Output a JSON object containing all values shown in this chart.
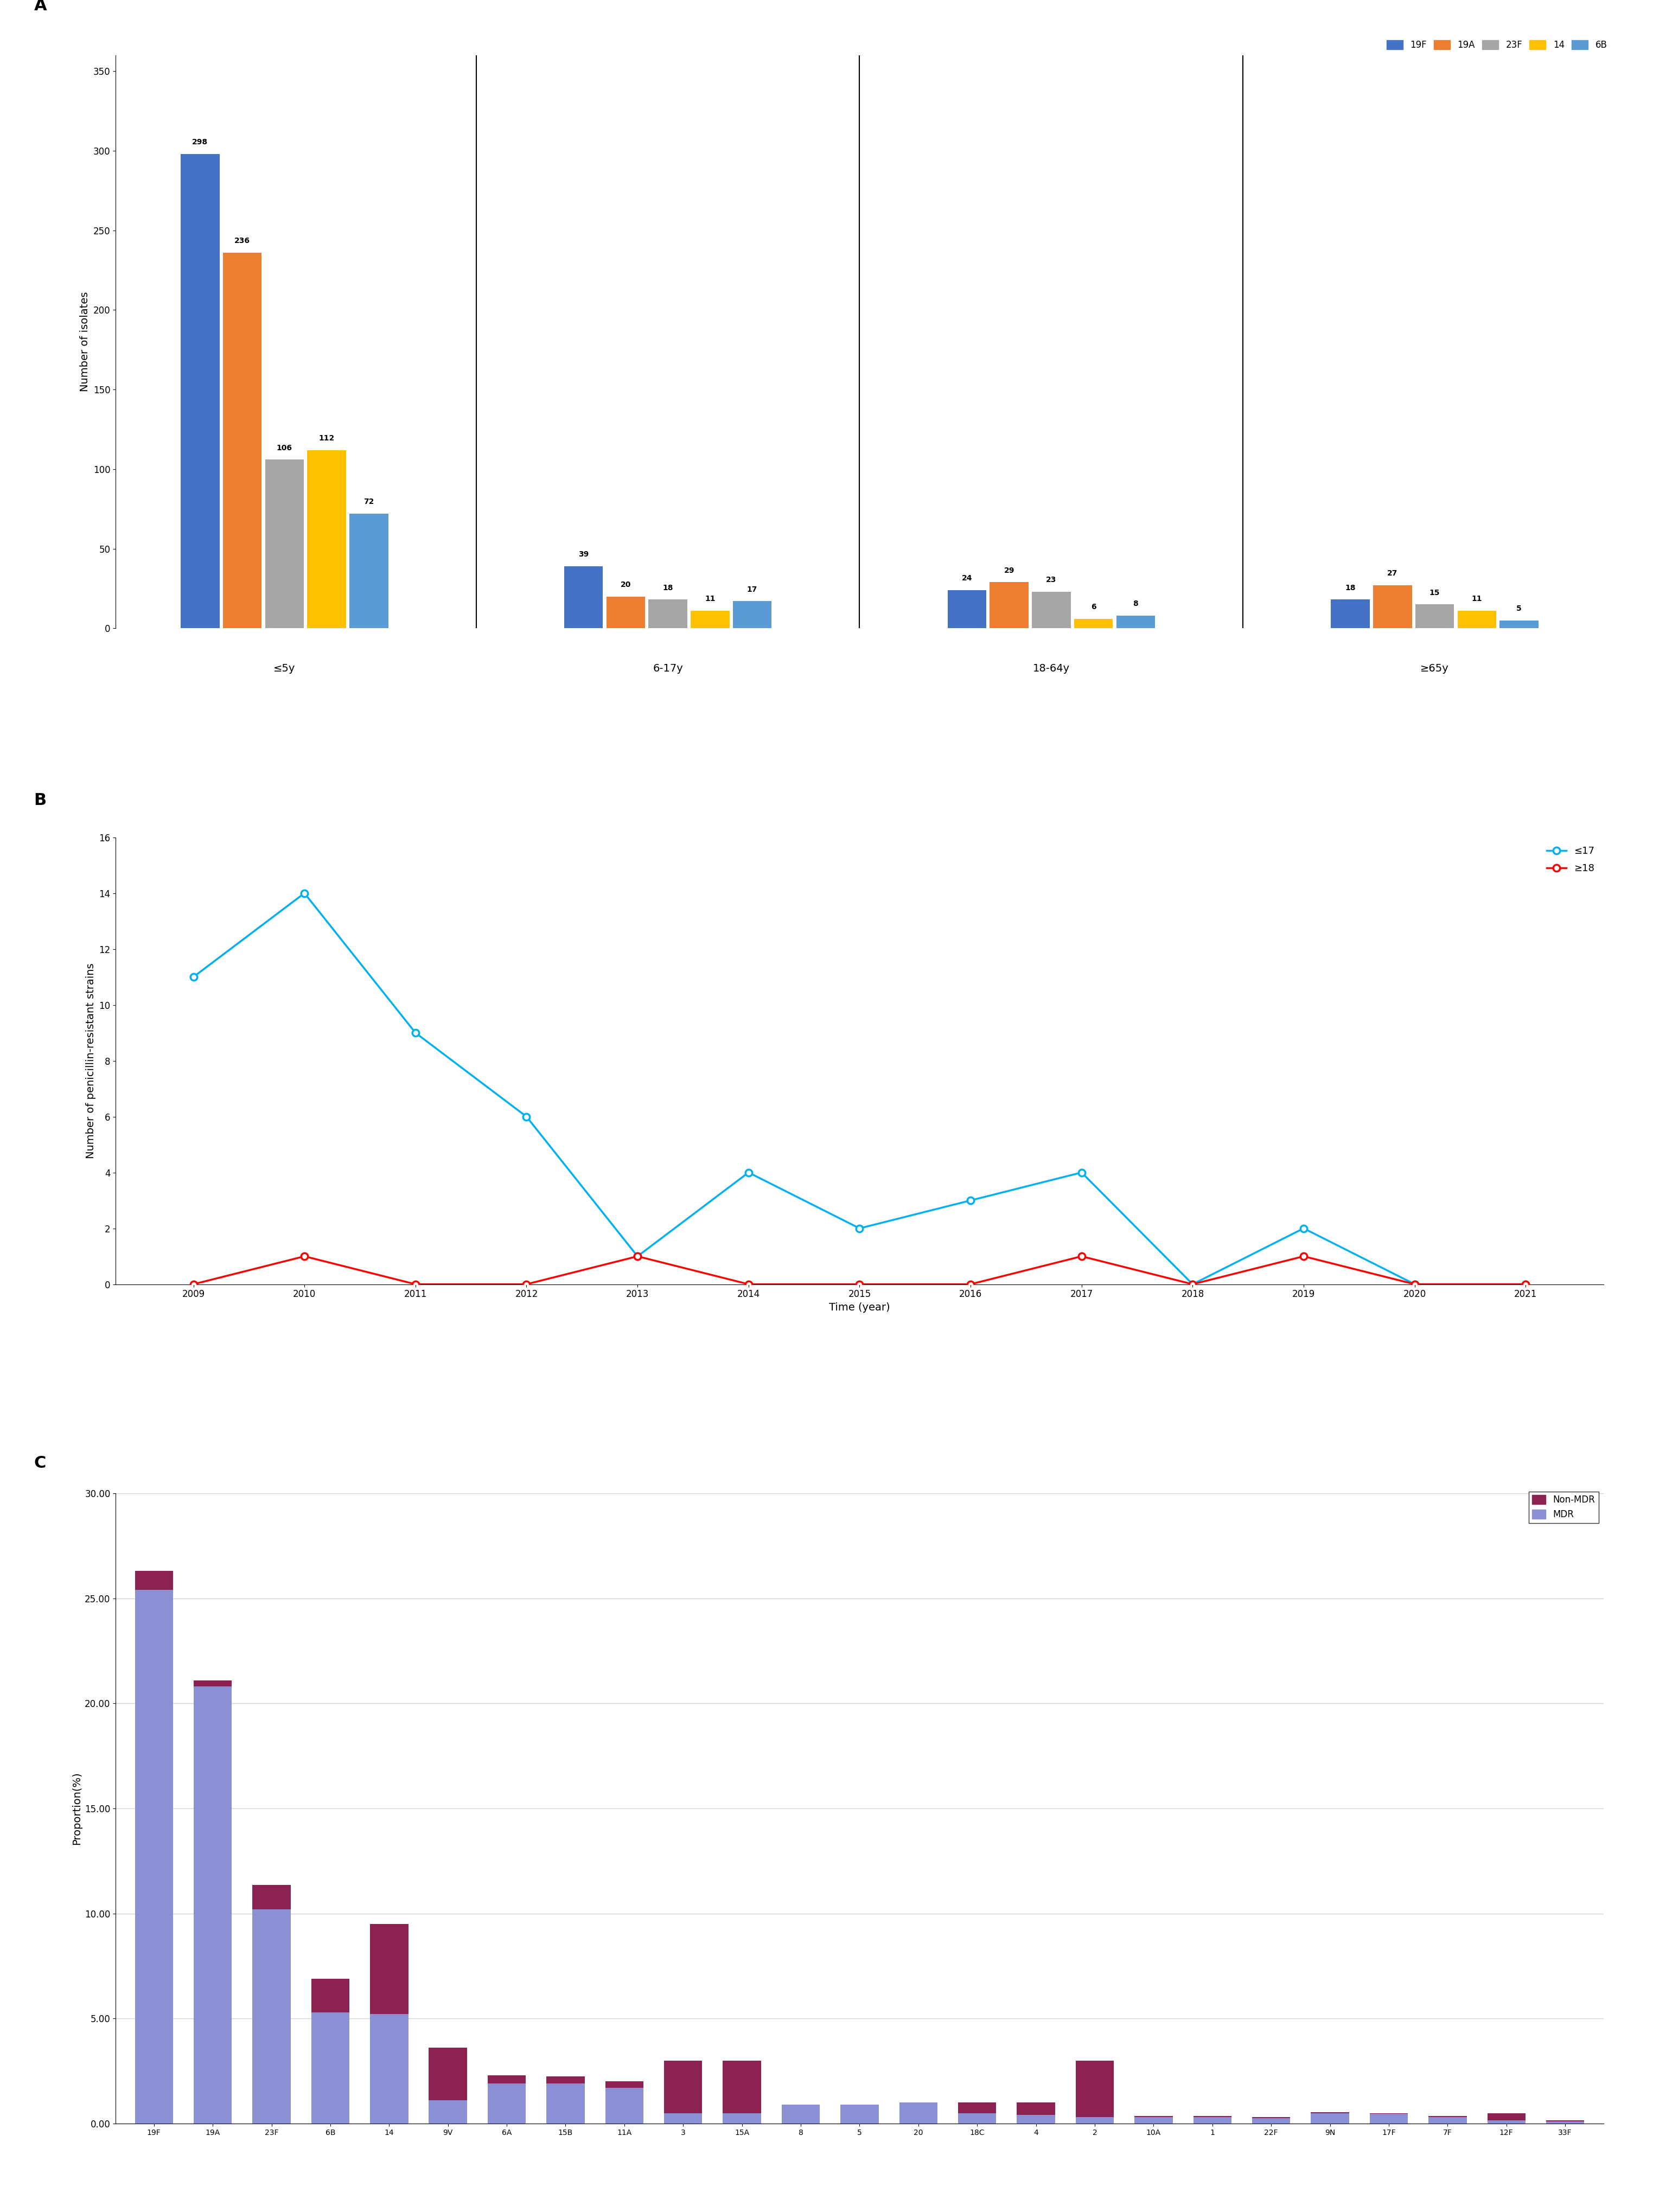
{
  "panel_A": {
    "groups": [
      "≤5y",
      "6-17y",
      "18-64y",
      "≥65y"
    ],
    "serotypes": [
      "19F",
      "19A",
      "23F",
      "14",
      "6B"
    ],
    "colors": [
      "#4472C4",
      "#ED7D31",
      "#A5A5A5",
      "#FFC000",
      "#5B9BD5"
    ],
    "values": [
      [
        298,
        236,
        106,
        112,
        72
      ],
      [
        39,
        20,
        18,
        11,
        17
      ],
      [
        24,
        29,
        23,
        6,
        8
      ],
      [
        18,
        27,
        15,
        11,
        5
      ]
    ],
    "ylabel": "Number of isolates",
    "ylim": [
      0,
      360
    ],
    "yticks": [
      0,
      50,
      100,
      150,
      200,
      250,
      300,
      350
    ]
  },
  "panel_B": {
    "years": [
      2009,
      2010,
      2011,
      2012,
      2013,
      2014,
      2015,
      2016,
      2017,
      2018,
      2019,
      2020,
      2021
    ],
    "le17": [
      11,
      14,
      9,
      6,
      1,
      4,
      2,
      3,
      4,
      0,
      2,
      0,
      0
    ],
    "ge18": [
      0,
      1,
      0,
      0,
      1,
      0,
      0,
      0,
      1,
      0,
      1,
      0,
      0
    ],
    "color_le17": "#00B0F0",
    "color_ge18": "#FF0000",
    "ylabel": "Number of penicillin-resistant strains",
    "xlabel": "Time (year)",
    "ylim": [
      0,
      16
    ],
    "yticks": [
      0,
      2,
      4,
      6,
      8,
      10,
      12,
      14,
      16
    ],
    "legend_le17": "≤17",
    "legend_ge18": "≥18"
  },
  "panel_C": {
    "serotypes": [
      "19F",
      "19A",
      "23F",
      "6B",
      "14",
      "9V",
      "6A",
      "15B",
      "11A",
      "3",
      "15A",
      "8",
      "5",
      "20",
      "18C",
      "4",
      "2",
      "10A",
      "1",
      "22F",
      "9N",
      "17F",
      "7F",
      "12F",
      "33F"
    ],
    "mdr": [
      25.4,
      20.8,
      10.2,
      5.3,
      5.2,
      1.1,
      1.9,
      1.9,
      1.7,
      0.5,
      0.5,
      0.9,
      0.9,
      1.0,
      0.5,
      0.4,
      0.3,
      0.3,
      0.3,
      0.25,
      0.5,
      0.45,
      0.3,
      0.15,
      0.1
    ],
    "non_mdr": [
      0.9,
      0.3,
      1.15,
      1.6,
      4.3,
      2.5,
      0.4,
      0.35,
      0.3,
      2.5,
      2.5,
      0.0,
      0.0,
      0.0,
      0.5,
      0.6,
      2.7,
      0.05,
      0.05,
      0.05,
      0.05,
      0.05,
      0.05,
      0.35,
      0.05
    ],
    "color_mdr": "#8B8FD4",
    "color_non_mdr": "#8B2252",
    "ylabel": "Proportion(%)",
    "ylim": [
      0,
      30
    ],
    "yticks": [
      0.0,
      5.0,
      10.0,
      15.0,
      20.0,
      25.0,
      30.0
    ]
  }
}
